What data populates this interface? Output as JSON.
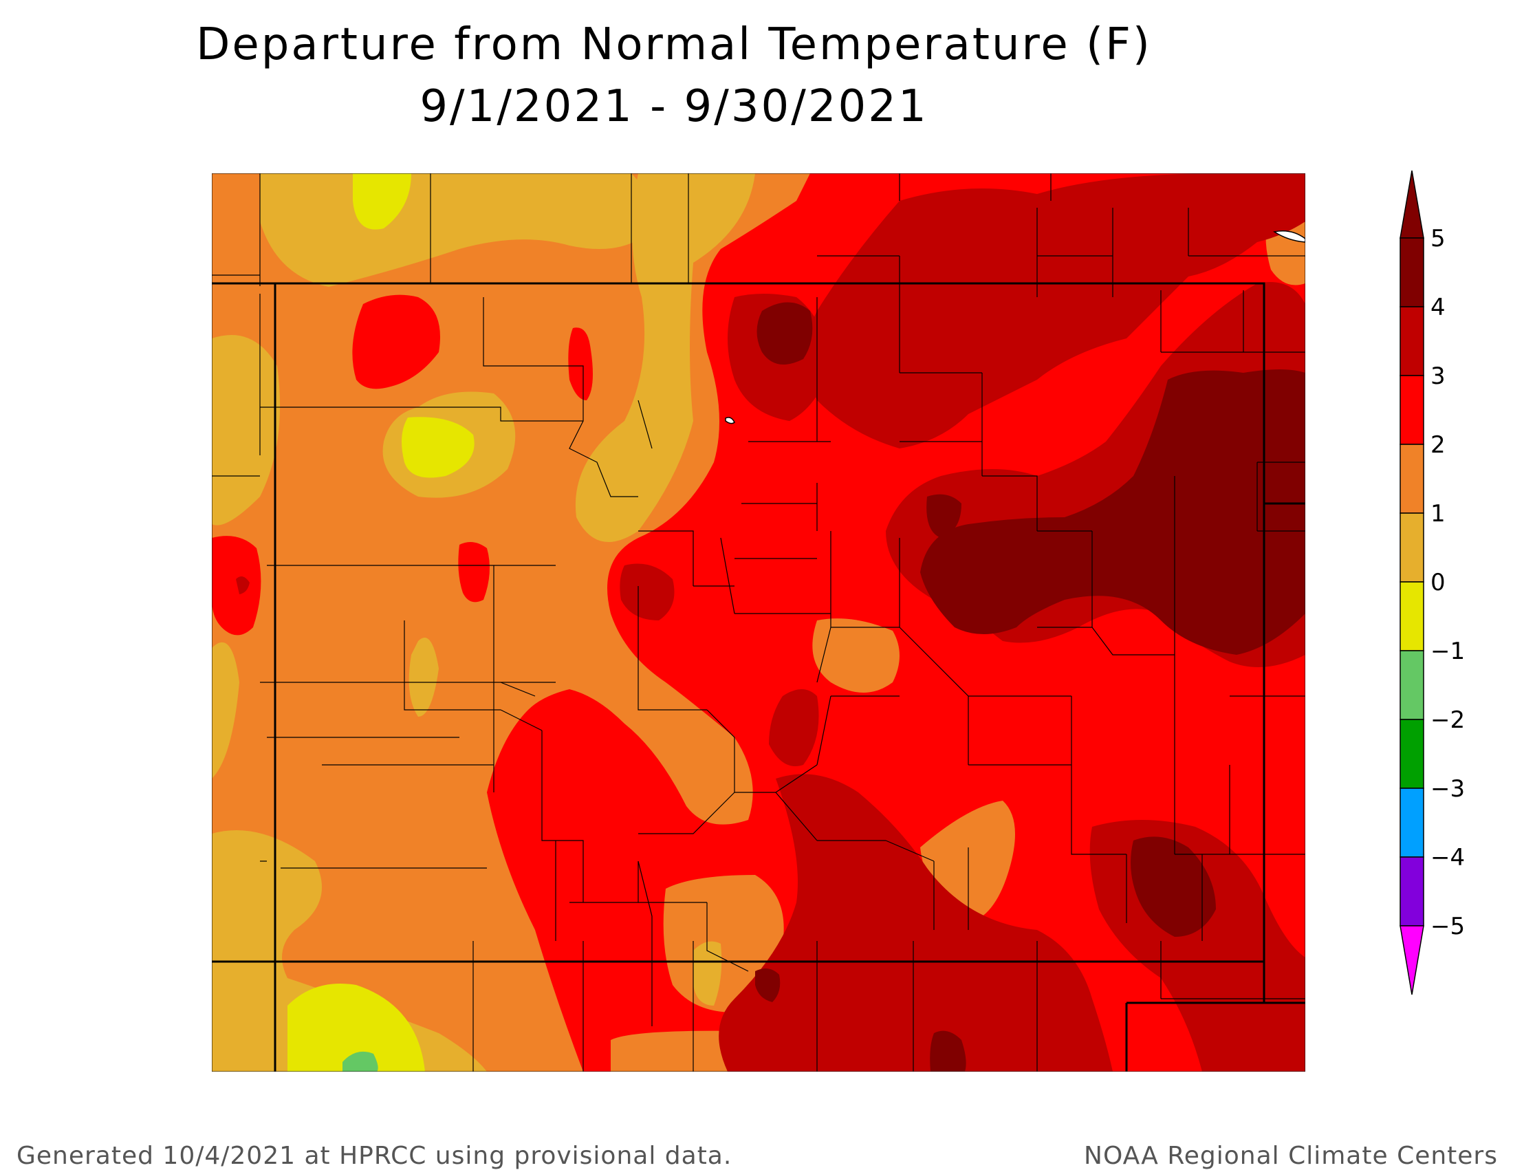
{
  "title": {
    "line1": "Departure from Normal Temperature (F)",
    "line2": "9/1/2021 - 9/30/2021"
  },
  "legend": {
    "bins": [
      {
        "value": 5,
        "label": "5",
        "color": "#800000"
      },
      {
        "value": 4,
        "label": "4",
        "color": "#c00000"
      },
      {
        "value": 3,
        "label": "3",
        "color": "#ff0000"
      },
      {
        "value": 2,
        "label": "2",
        "color": "#f08228"
      },
      {
        "value": 1,
        "label": "1",
        "color": "#e6af2d"
      },
      {
        "value": 0,
        "label": "0",
        "color": "#e6e600"
      },
      {
        "value": -1,
        "label": "−1",
        "color": "#64c864"
      },
      {
        "value": -2,
        "label": "−2",
        "color": "#00a000"
      },
      {
        "value": -3,
        "label": "−3",
        "color": "#00a0ff"
      },
      {
        "value": -4,
        "label": "−4",
        "color": "#8200dc"
      },
      {
        "value": -5,
        "label": "−5",
        "color": "#a000c8"
      }
    ],
    "min_arrow_color": "#ff00ff",
    "max_arrow_color": "#800000"
  },
  "footer": {
    "left": "Generated 10/4/2021 at HPRCC using provisional data.",
    "right": "NOAA Regional Climate Centers"
  }
}
